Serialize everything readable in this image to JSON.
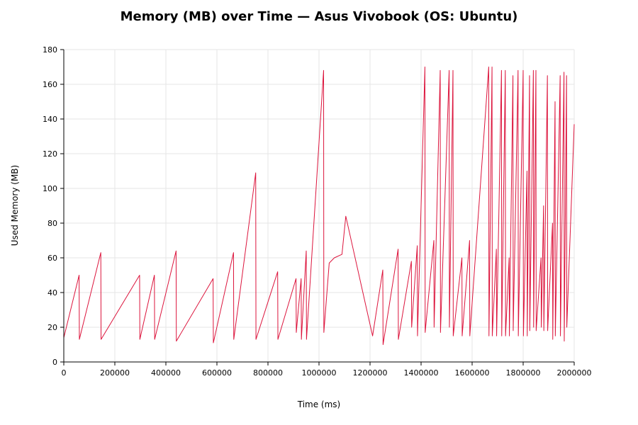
{
  "chart_data": {
    "type": "line",
    "title": "Memory (MB) over Time — Asus Vivobook (OS: Ubuntu)",
    "xlabel": "Time (ms)",
    "ylabel": "Used Memory (MB)",
    "xlim": [
      0,
      2000000
    ],
    "ylim": [
      0,
      180
    ],
    "xticks": [
      0,
      200000,
      400000,
      600000,
      800000,
      1000000,
      1200000,
      1400000,
      1600000,
      1800000,
      2000000
    ],
    "yticks": [
      0,
      20,
      40,
      60,
      80,
      100,
      120,
      140,
      160,
      180
    ],
    "grid": true,
    "legend": "none",
    "series": [
      {
        "color": "#dc143c",
        "points": [
          [
            0,
            14
          ],
          [
            60000,
            50
          ],
          [
            61000,
            13
          ],
          [
            145000,
            63
          ],
          [
            146000,
            13
          ],
          [
            297000,
            50
          ],
          [
            298000,
            13
          ],
          [
            355000,
            50
          ],
          [
            356000,
            13
          ],
          [
            440000,
            64
          ],
          [
            441000,
            12
          ],
          [
            585000,
            48
          ],
          [
            586000,
            11
          ],
          [
            665000,
            63
          ],
          [
            666000,
            13
          ],
          [
            752000,
            109
          ],
          [
            753000,
            13
          ],
          [
            838000,
            52
          ],
          [
            839000,
            13
          ],
          [
            910000,
            48
          ],
          [
            911000,
            17
          ],
          [
            930000,
            48
          ],
          [
            931000,
            13
          ],
          [
            950000,
            64
          ],
          [
            951000,
            13
          ],
          [
            1018000,
            168
          ],
          [
            1019000,
            17
          ],
          [
            1040000,
            57
          ],
          [
            1060000,
            60
          ],
          [
            1090000,
            62
          ],
          [
            1105000,
            84
          ],
          [
            1210000,
            15
          ],
          [
            1250000,
            53
          ],
          [
            1251000,
            10
          ],
          [
            1310000,
            65
          ],
          [
            1311000,
            13
          ],
          [
            1362000,
            58
          ],
          [
            1363000,
            20
          ],
          [
            1385000,
            67
          ],
          [
            1386000,
            15
          ],
          [
            1415000,
            170
          ],
          [
            1416000,
            17
          ],
          [
            1450000,
            70
          ],
          [
            1451000,
            20
          ],
          [
            1475000,
            168
          ],
          [
            1476000,
            17
          ],
          [
            1510000,
            168
          ],
          [
            1511000,
            20
          ],
          [
            1525000,
            168
          ],
          [
            1526000,
            15
          ],
          [
            1560000,
            60
          ],
          [
            1561000,
            15
          ],
          [
            1590000,
            70
          ],
          [
            1591000,
            15
          ],
          [
            1665000,
            170
          ],
          [
            1666000,
            15
          ],
          [
            1678000,
            170
          ],
          [
            1679000,
            15
          ],
          [
            1695000,
            65
          ],
          [
            1696000,
            15
          ],
          [
            1715000,
            168
          ],
          [
            1716000,
            15
          ],
          [
            1730000,
            168
          ],
          [
            1731000,
            15
          ],
          [
            1745000,
            60
          ],
          [
            1746000,
            15
          ],
          [
            1760000,
            165
          ],
          [
            1761000,
            18
          ],
          [
            1780000,
            168
          ],
          [
            1781000,
            15
          ],
          [
            1800000,
            168
          ],
          [
            1801000,
            15
          ],
          [
            1815000,
            110
          ],
          [
            1816000,
            15
          ],
          [
            1825000,
            165
          ],
          [
            1826000,
            18
          ],
          [
            1840000,
            168
          ],
          [
            1841000,
            20
          ],
          [
            1850000,
            168
          ],
          [
            1851000,
            18
          ],
          [
            1870000,
            60
          ],
          [
            1871000,
            20
          ],
          [
            1880000,
            90
          ],
          [
            1881000,
            18
          ],
          [
            1895000,
            165
          ],
          [
            1896000,
            18
          ],
          [
            1915000,
            80
          ],
          [
            1916000,
            13
          ],
          [
            1925000,
            150
          ],
          [
            1926000,
            15
          ],
          [
            1945000,
            165
          ],
          [
            1946000,
            15
          ],
          [
            1960000,
            167
          ],
          [
            1961000,
            12
          ],
          [
            1970000,
            165
          ],
          [
            1971000,
            20
          ],
          [
            2000000,
            137
          ]
        ]
      }
    ]
  }
}
